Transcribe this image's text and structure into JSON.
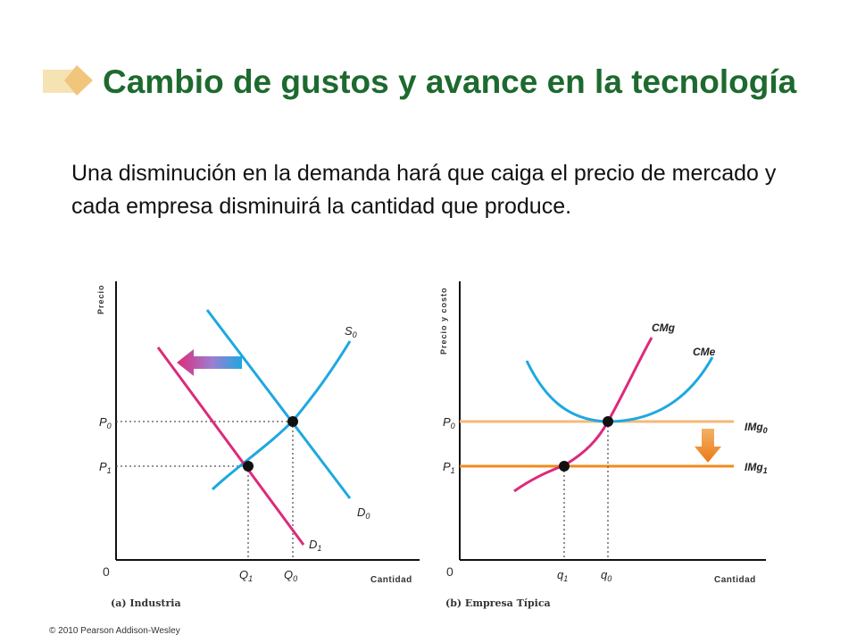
{
  "slide": {
    "title": "Cambio de gustos y avance en la tecnología",
    "body": "Una disminución en la demanda hará que caiga el precio de mercado y cada empresa disminuirá la cantidad que produce.",
    "copyright": "© 2010 Pearson Addison-Wesley"
  },
  "panel_a": {
    "caption": "(a) Industria",
    "y_axis_label": "Precio",
    "x_axis_label": "Cantidad",
    "origin": "0",
    "p0": "P0",
    "p1": "P1",
    "q1": "Q1",
    "q0": "Q0",
    "supply": "S0",
    "demand0": "D0",
    "demand1": "D1"
  },
  "panel_b": {
    "caption": "(b) Empresa Típica",
    "y_axis_label": "Precio y costo",
    "x_axis_label": "Cantidad",
    "origin": "0",
    "p0": "P0",
    "p1": "P1",
    "q1": "q1",
    "q0": "q0",
    "cmg": "CMg",
    "cme": "CMe",
    "img0": "IMg0",
    "img1": "IMg1"
  },
  "colors": {
    "title": "#1d6a2e",
    "cyan_curve": "#1ea8e0",
    "magenta_curve": "#dd2a7b",
    "img0_line": "#f5b97a",
    "img1_line": "#ef8c1f",
    "arrow_down": "#ee8422"
  }
}
